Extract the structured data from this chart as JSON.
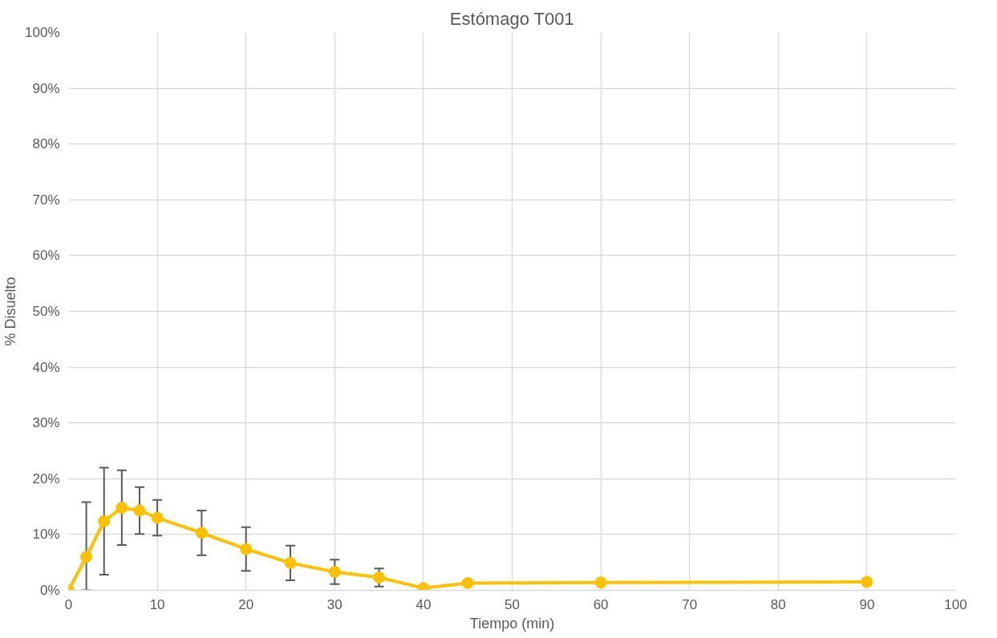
{
  "chart_data": {
    "type": "line",
    "title": "Estómago T001",
    "xlabel": "Tiempo (min)",
    "ylabel": "% Disuelto",
    "x": [
      0,
      2,
      4,
      6,
      8,
      10,
      15,
      20,
      25,
      30,
      35,
      40,
      45,
      60,
      90
    ],
    "series": [
      {
        "color": "#ffc000",
        "values": [
          0,
          6.0,
          12.4,
          14.8,
          14.3,
          13.0,
          10.3,
          7.4,
          4.9,
          3.3,
          2.3,
          0.4,
          1.3,
          1.4,
          1.5
        ],
        "errors": [
          null,
          [
            0,
            15.8
          ],
          9.6,
          6.7,
          4.2,
          3.2,
          4.0,
          3.9,
          3.1,
          2.2,
          1.6,
          null,
          null,
          null,
          null
        ]
      }
    ],
    "xlim": [
      0,
      100
    ],
    "xticks": [
      0,
      10,
      20,
      30,
      40,
      50,
      60,
      70,
      80,
      90,
      100
    ],
    "ylim": [
      0,
      100
    ],
    "yticks": [
      {
        "value": 0,
        "label": "0%"
      },
      {
        "value": 10,
        "label": "10%"
      },
      {
        "value": 20,
        "label": "20%"
      },
      {
        "value": 30,
        "label": "30%"
      },
      {
        "value": 40,
        "label": "40%"
      },
      {
        "value": 50,
        "label": "50%"
      },
      {
        "value": 60,
        "label": "60%"
      },
      {
        "value": 70,
        "label": "70%"
      },
      {
        "value": 80,
        "label": "80%"
      },
      {
        "value": 90,
        "label": "90%"
      },
      {
        "value": 100,
        "label": "100%"
      }
    ],
    "grid": true,
    "marker": "circle",
    "line_style": "solid"
  }
}
